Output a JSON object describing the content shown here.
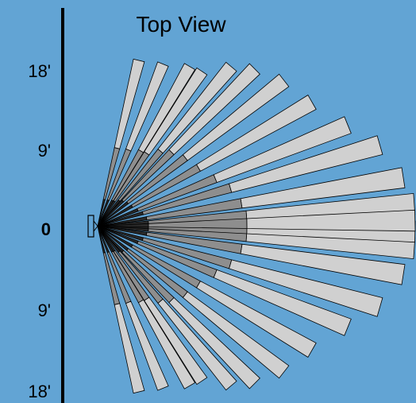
{
  "title": "Top View",
  "axis": {
    "labels": [
      {
        "text": "18'",
        "bold": false
      },
      {
        "text": "9'",
        "bold": false
      },
      {
        "text": "0",
        "bold": true
      },
      {
        "text": "9'",
        "bold": false
      },
      {
        "text": "18'",
        "bold": false
      }
    ]
  },
  "colors": {
    "background": "#62a4d4",
    "beam_outer": "#d0d0d0",
    "beam_inner": "#8e8e8e",
    "beam_core": "#2a2a2a",
    "axis_line": "#000000",
    "sensor": "#62a4d4"
  },
  "icon": "motion-sensor-icon"
}
